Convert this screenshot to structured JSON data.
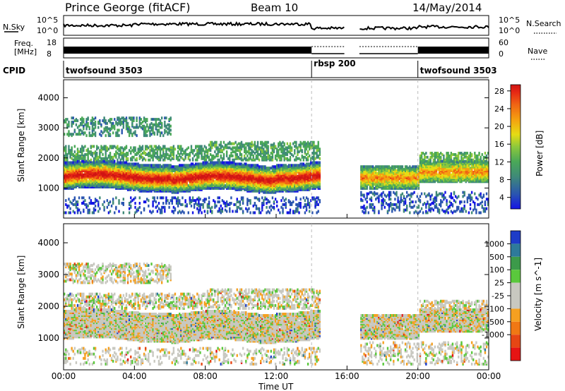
{
  "header": {
    "station": "Prince George (fitACF)",
    "beam": "Beam 10",
    "date": "14/May/2014"
  },
  "noise_panel": {
    "left_label": "N.Sky",
    "left_ticks": [
      "10^5",
      "10^0"
    ],
    "right_ticks": [
      "10^5",
      "10^0"
    ],
    "right_label": "N.Search"
  },
  "freq_panel": {
    "left_label_1": "Freq.",
    "left_label_2": "[MHz]",
    "left_ticks": [
      "18",
      "8"
    ],
    "right_ticks": [
      "60",
      "0"
    ],
    "right_label": "Nave"
  },
  "cpid": {
    "label": "CPID",
    "segments": [
      {
        "name": "twofsound 3503",
        "start_h": 0.0,
        "end_h": 14.0
      },
      {
        "name": "rbsp 200",
        "start_h": 14.0,
        "end_h": 20.0
      },
      {
        "name": "twofsound 3503",
        "start_h": 20.0,
        "end_h": 24.0
      }
    ],
    "data_gap_h": [
      15.85,
      16.7
    ]
  },
  "chart_data": [
    {
      "type": "heatmap",
      "name": "power",
      "xlabel": "",
      "ylabel": "Slant Range [km]",
      "x_range_h": [
        0,
        24
      ],
      "ylim": [
        0,
        4600
      ],
      "yticks": [
        1000,
        2000,
        3000,
        4000
      ],
      "colorbar": {
        "label": "Power [dB]",
        "ticks": [
          "28",
          "24",
          "20",
          "16",
          "12",
          "8",
          "4"
        ],
        "colors": [
          "#1414e6",
          "#2a55b0",
          "#3f8a78",
          "#4aa858",
          "#8cc83c",
          "#e6dc14",
          "#f5a010",
          "#f06414",
          "#e62814",
          "#d01414"
        ]
      },
      "bands": [
        {
          "range_km": [
            1000,
            1900
          ],
          "start_h": 0,
          "end_h": 14.5,
          "level": "high"
        },
        {
          "range_km": [
            1000,
            1800
          ],
          "start_h": 16.7,
          "end_h": 24,
          "level": "medium"
        },
        {
          "range_km": [
            2700,
            3300
          ],
          "start_h": 0,
          "end_h": 6,
          "level": "low"
        }
      ]
    },
    {
      "type": "heatmap",
      "name": "velocity",
      "xlabel": "Time UT",
      "ylabel": "Slant Range [km]",
      "x_range_h": [
        0,
        24
      ],
      "xticks": [
        "00:00",
        "04:00",
        "08:00",
        "12:00",
        "16:00",
        "20:00",
        "00:00"
      ],
      "ylim": [
        0,
        4600
      ],
      "yticks": [
        1000,
        2000,
        3000,
        4000
      ],
      "colorbar": {
        "label": "Velocity [m s^-1]",
        "ticks": [
          "1000",
          "500",
          "100",
          "25",
          "-25",
          "-100",
          "-500",
          "-1000"
        ],
        "colors": [
          "#1e3cc8",
          "#2e7a9a",
          "#3c9a4a",
          "#5ac83c",
          "#c8c8c0",
          "#c8c8c0",
          "#f5a020",
          "#f07814",
          "#e64614",
          "#e61414"
        ]
      },
      "bands": [
        {
          "range_km": [
            1000,
            1900
          ],
          "start_h": 0,
          "end_h": 14.5,
          "level": "mostly-ground-scatter"
        },
        {
          "range_km": [
            1100,
            1800
          ],
          "start_h": 16.7,
          "end_h": 24,
          "level": "mostly-ground-scatter"
        }
      ]
    }
  ]
}
